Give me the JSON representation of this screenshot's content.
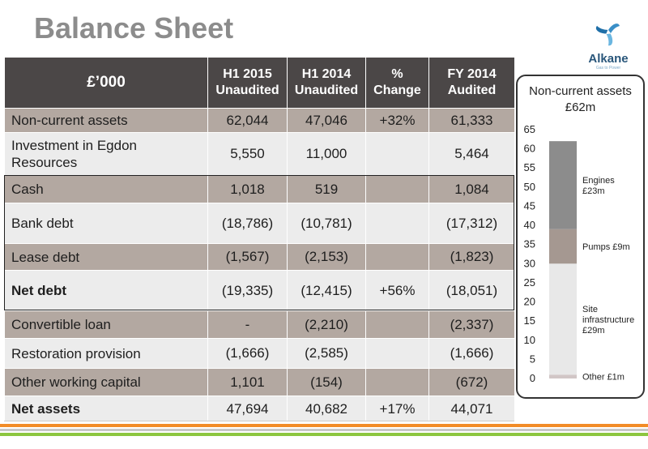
{
  "title": "Balance Sheet",
  "logo": {
    "name": "Alkane",
    "tagline": "Gas to Power"
  },
  "table": {
    "header": {
      "col0": "£’000",
      "col1a": "H1 2015",
      "col1b": "Unaudited",
      "col2a": "H1 2014",
      "col2b": "Unaudited",
      "col3a": "%",
      "col3b": "Change",
      "col4a": "FY 2014",
      "col4b": "Audited"
    },
    "rows": [
      {
        "label": "Non-current assets",
        "h1_2015": "62,044",
        "h1_2014": "47,046",
        "change": "+32%",
        "fy_2014": "61,333"
      },
      {
        "label_a": "Investment in Egdon",
        "label_b": "Resources",
        "h1_2015": "5,550",
        "h1_2014": "11,000",
        "change": "",
        "fy_2014": "5,464"
      },
      {
        "label": "Cash",
        "h1_2015": "1,018",
        "h1_2014": "519",
        "change": "",
        "fy_2014": "1,084"
      },
      {
        "label": "Bank debt",
        "h1_2015": "(18,786)",
        "h1_2014": "(10,781)",
        "change": "",
        "fy_2014": "(17,312)"
      },
      {
        "label": "Lease debt",
        "h1_2015": "(1,567)",
        "h1_2014": "(2,153)",
        "change": "",
        "fy_2014": "(1,823)"
      },
      {
        "label": "Net debt",
        "h1_2015": "(19,335)",
        "h1_2014": "(12,415)",
        "change": "+56%",
        "fy_2014": "(18,051)"
      },
      {
        "label": "Convertible loan",
        "h1_2015": "-",
        "h1_2014": "(2,210)",
        "change": "",
        "fy_2014": "(2,337)"
      },
      {
        "label": "Restoration provision",
        "h1_2015": "(1,666)",
        "h1_2014": "(2,585)",
        "change": "",
        "fy_2014": "(1,666)"
      },
      {
        "label": "Other working capital",
        "h1_2015": "1,101",
        "h1_2014": "(154)",
        "change": "",
        "fy_2014": "(672)"
      },
      {
        "label": "Net assets",
        "h1_2015": "47,694",
        "h1_2014": "40,682",
        "change": "+17%",
        "fy_2014": "44,071"
      }
    ]
  },
  "colors": {
    "header_bg": "#4b4747",
    "row_tan": "#b3a8a1",
    "row_light": "#ececec",
    "stripe_orange": "#f28c28",
    "stripe_green": "#8cc63f",
    "seg_other": "#d1c6c6",
    "seg_site": "#e8e8e8",
    "seg_pumps": "#a59891",
    "seg_engines": "#8c8c8c"
  },
  "chart_data": {
    "type": "bar",
    "title_line1": "Non-current assets",
    "title_line2": "£62m",
    "ylim": [
      0,
      65
    ],
    "yticks": [
      "0",
      "5",
      "10",
      "15",
      "20",
      "25",
      "30",
      "35",
      "40",
      "45",
      "50",
      "55",
      "60",
      "65"
    ],
    "series": [
      {
        "label_lines": [
          "Other £1m"
        ],
        "value": 1,
        "color": "#d1c6c6"
      },
      {
        "label_lines": [
          "Site",
          "infrastructure",
          "£29m"
        ],
        "value": 29,
        "color": "#e8e8e8"
      },
      {
        "label_lines": [
          "Pumps £9m"
        ],
        "value": 9,
        "color": "#a59891"
      },
      {
        "label_lines": [
          "Engines",
          "£23m"
        ],
        "value": 23,
        "color": "#8c8c8c"
      }
    ]
  }
}
